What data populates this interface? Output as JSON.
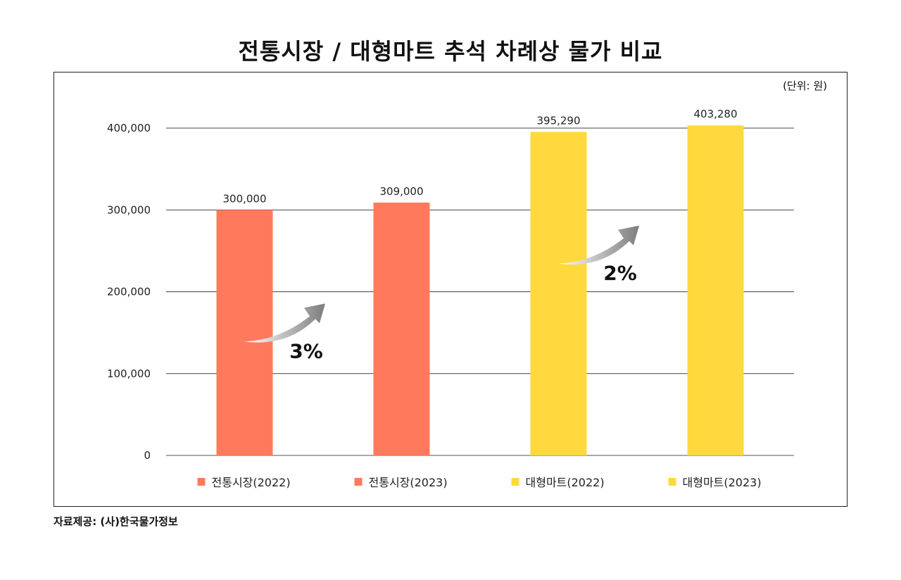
{
  "title": "전통시장 / 대형마트 추석 차례상 물가 비교",
  "unit_note": "(단위: 원)",
  "source": "자료제공: (사)한국물가정보",
  "chart_data": {
    "type": "bar",
    "title": "전통시장 / 대형마트 추석 차례상 물가 비교",
    "xlabel": "",
    "ylabel": "",
    "ylim": [
      0,
      400000
    ],
    "yticks": [
      0,
      100000,
      200000,
      300000,
      400000
    ],
    "ytick_labels": [
      "0",
      "100,000",
      "200,000",
      "300,000",
      "400,000"
    ],
    "grid": true,
    "legend_position": "bottom",
    "categories": [
      "전통시장(2022)",
      "전통시장(2023)",
      "대형마트(2022)",
      "대형마트(2023)"
    ],
    "values": [
      300000,
      309000,
      395290,
      403280
    ],
    "value_labels": [
      "300,000",
      "309,000",
      "395,290",
      "403,280"
    ],
    "colors": [
      "#ff7a5c",
      "#ff7a5c",
      "#ffd93d",
      "#ffd93d"
    ],
    "annotations": [
      {
        "text": "3%",
        "from": 0,
        "to": 1
      },
      {
        "text": "2%",
        "from": 2,
        "to": 3
      }
    ]
  }
}
